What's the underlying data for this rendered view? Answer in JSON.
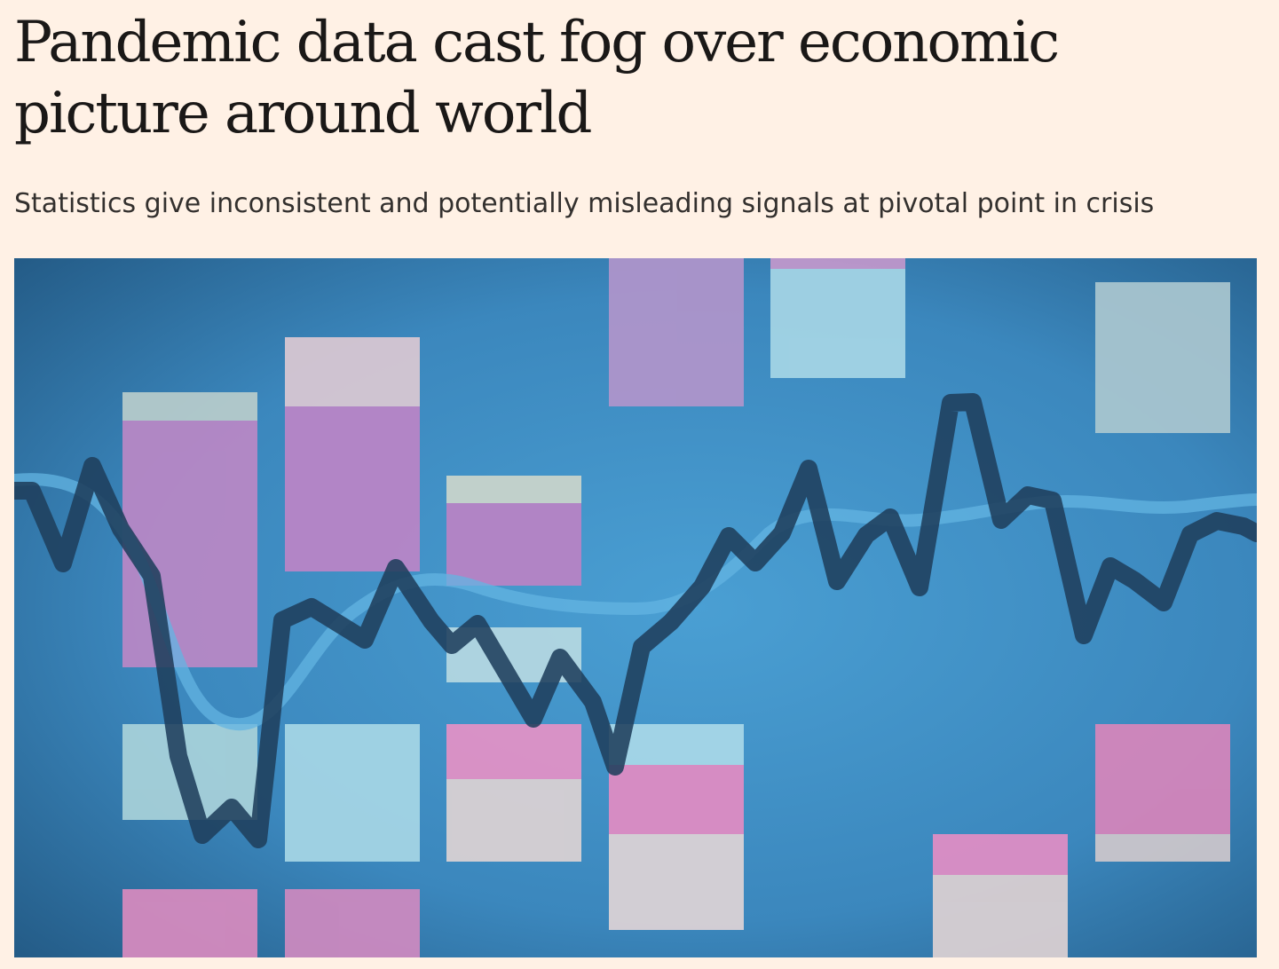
{
  "article": {
    "headline": "Pandemic data cast fog over economic picture around world",
    "standfirst": "Statistics give inconsistent and potentially misleading signals at pivotal point in crisis"
  },
  "hero_image": {
    "icon": "abstract-line-chart-illustration",
    "colors": {
      "background": "#3f8fc4",
      "dark_line": "#1f3f5c",
      "light_line": "#62b3e0",
      "lavender": "#b08fcb",
      "pink": "#e48fc6",
      "pale_blue": "#a9d8e8",
      "cream": "#e4d6d2"
    }
  },
  "page": {
    "background": "#fff1e5"
  }
}
